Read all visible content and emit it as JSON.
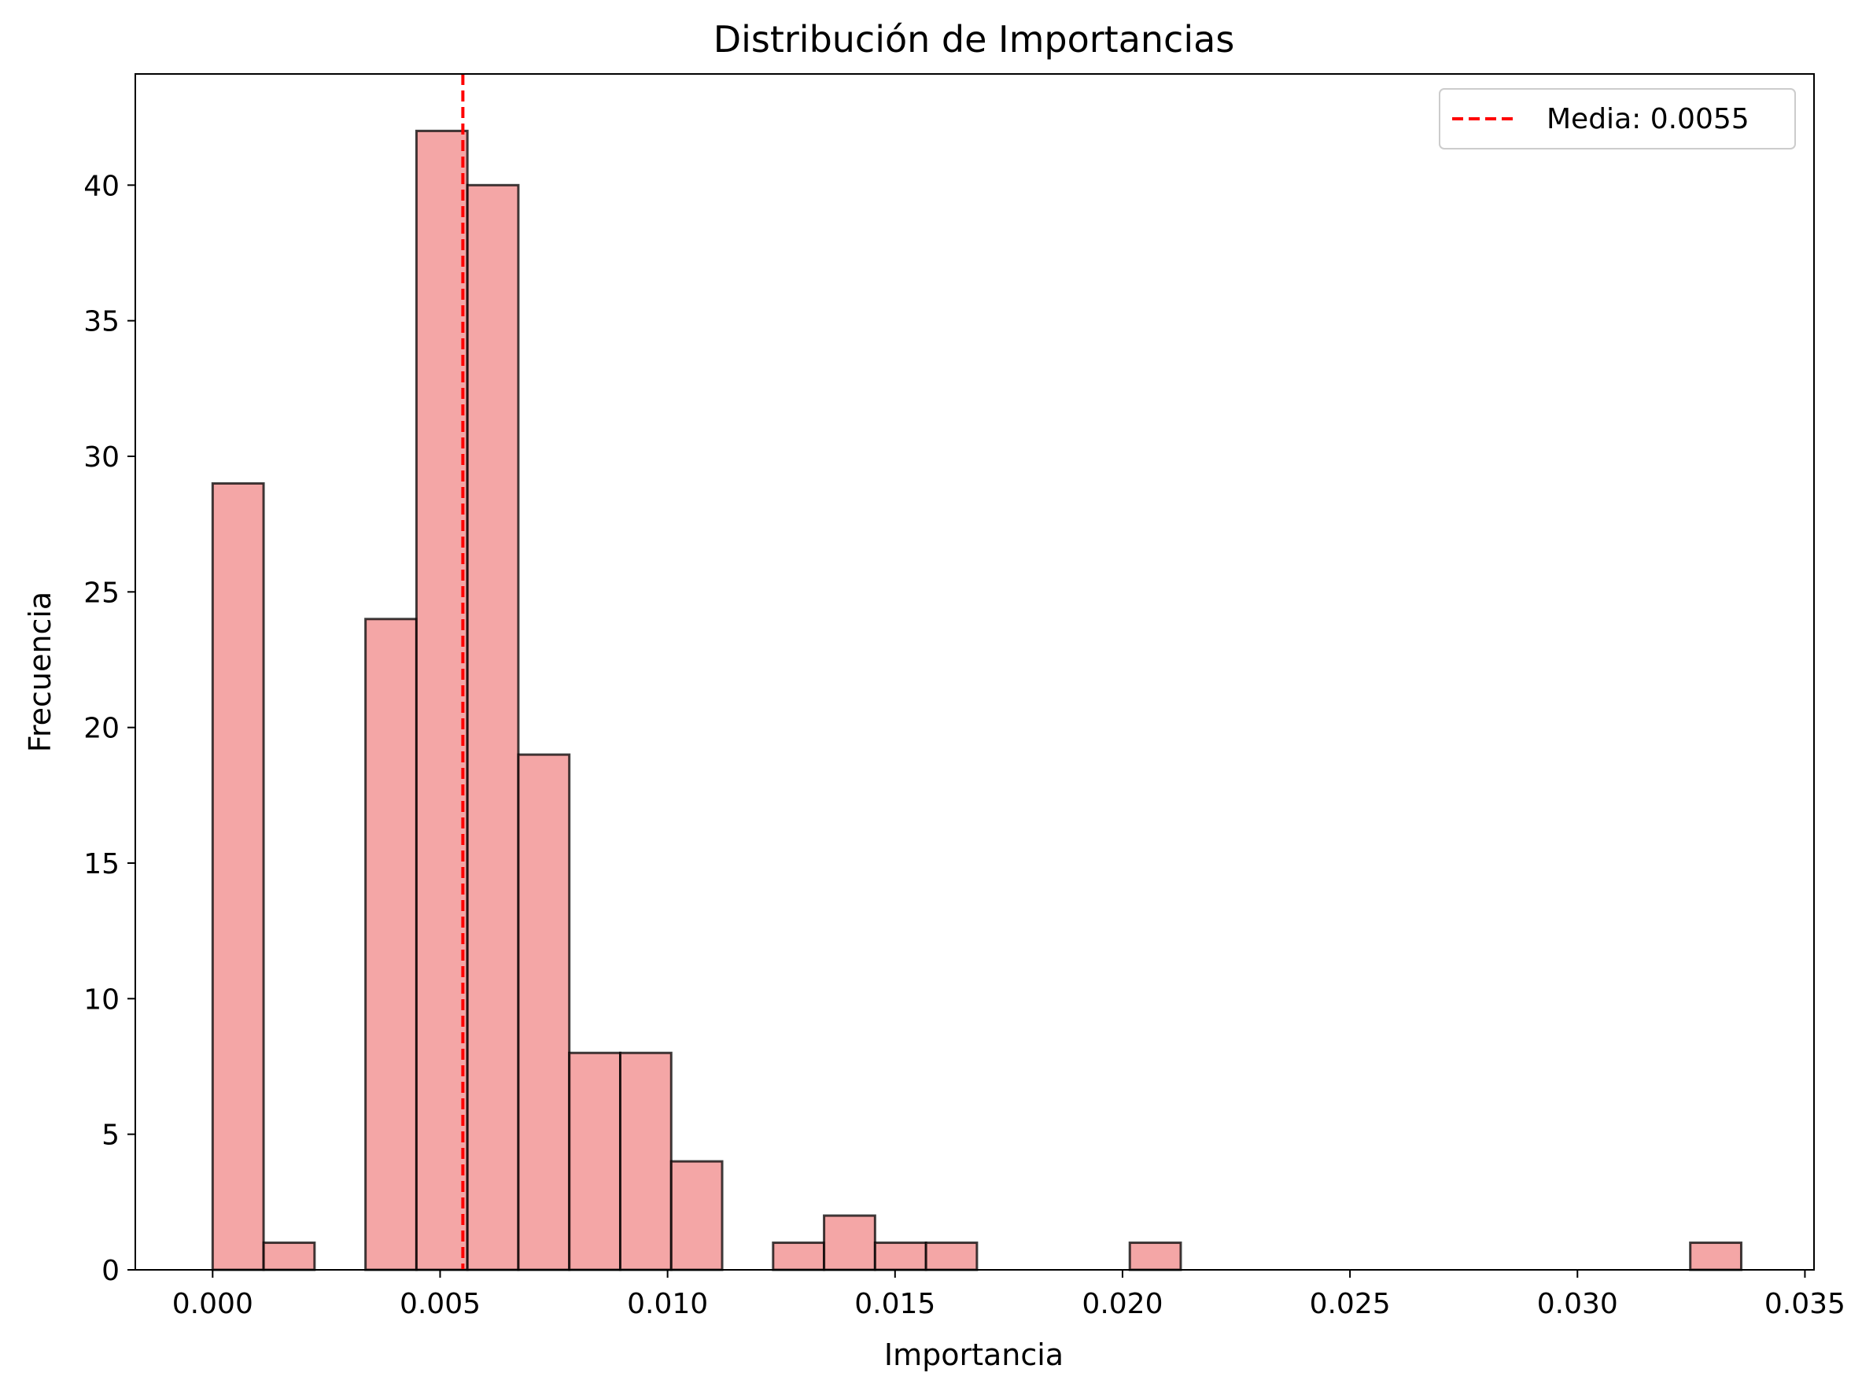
{
  "chart_data": {
    "type": "bar",
    "title": "Distribución de Importancias",
    "xlabel": "Importancia",
    "ylabel": "Frecuencia",
    "xlim": [
      -0.0017,
      0.0352
    ],
    "ylim": [
      0,
      44.1
    ],
    "xticks": [
      {
        "value": 0.0,
        "label": "0.000"
      },
      {
        "value": 0.005,
        "label": "0.005"
      },
      {
        "value": 0.01,
        "label": "0.010"
      },
      {
        "value": 0.015,
        "label": "0.015"
      },
      {
        "value": 0.02,
        "label": "0.020"
      },
      {
        "value": 0.025,
        "label": "0.025"
      },
      {
        "value": 0.03,
        "label": "0.030"
      },
      {
        "value": 0.035,
        "label": "0.035"
      }
    ],
    "yticks": [
      {
        "value": 0,
        "label": "0"
      },
      {
        "value": 5,
        "label": "5"
      },
      {
        "value": 10,
        "label": "10"
      },
      {
        "value": 15,
        "label": "15"
      },
      {
        "value": 20,
        "label": "20"
      },
      {
        "value": 25,
        "label": "25"
      },
      {
        "value": 30,
        "label": "30"
      },
      {
        "value": 35,
        "label": "35"
      },
      {
        "value": 40,
        "label": "40"
      }
    ],
    "bins": {
      "start": 0.0,
      "width": 0.00112,
      "counts": [
        29,
        1,
        0,
        24,
        42,
        40,
        19,
        8,
        8,
        4,
        0,
        1,
        2,
        1,
        1,
        0,
        0,
        0,
        1,
        0,
        0,
        0,
        0,
        0,
        0,
        0,
        0,
        0,
        0,
        1
      ]
    },
    "mean_line": {
      "value": 0.0055,
      "label": "Media: 0.0055",
      "color": "#ff0000"
    },
    "bar_color": "#f08080",
    "bar_alpha": 0.7,
    "edge_color": "#000000",
    "grid": false,
    "legend_position": "top-right"
  }
}
